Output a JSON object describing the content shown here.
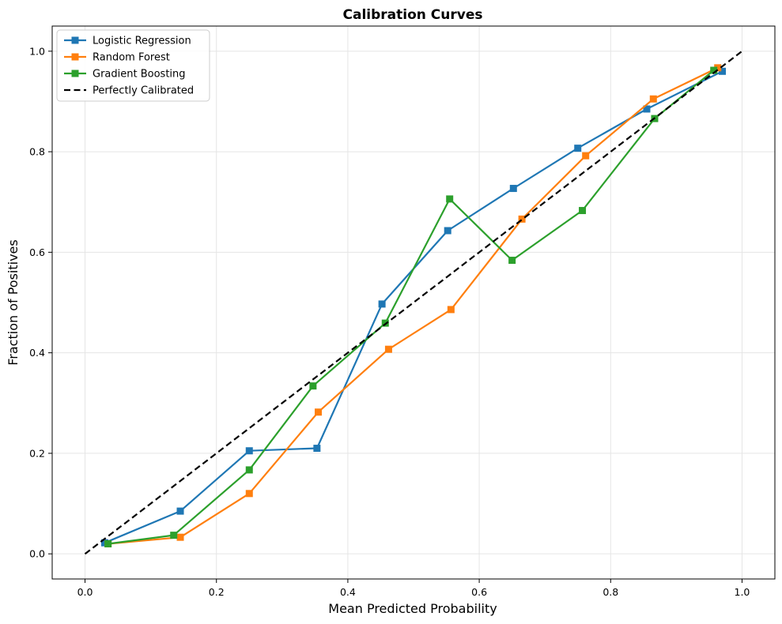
{
  "chart_data": {
    "type": "line",
    "title": "Calibration Curves",
    "xlabel": "Mean Predicted Probability",
    "ylabel": "Fraction of Positives",
    "xlim": [
      -0.05,
      1.05
    ],
    "ylim": [
      -0.05,
      1.05
    ],
    "xticks": [
      "0.0",
      "0.2",
      "0.4",
      "0.6",
      "0.8",
      "1.0"
    ],
    "yticks": [
      "0.0",
      "0.2",
      "0.4",
      "0.6",
      "0.8",
      "1.0"
    ],
    "grid": true,
    "legend_position": "top-left",
    "series": [
      {
        "name": "Logistic Regression",
        "color": "#1f77b4",
        "marker": "square",
        "x": [
          0.03,
          0.145,
          0.25,
          0.353,
          0.452,
          0.552,
          0.652,
          0.75,
          0.855,
          0.97
        ],
        "y": [
          0.022,
          0.085,
          0.205,
          0.21,
          0.497,
          0.643,
          0.727,
          0.807,
          0.885,
          0.96
        ]
      },
      {
        "name": "Random Forest",
        "color": "#ff7f0e",
        "marker": "square",
        "x": [
          0.035,
          0.145,
          0.25,
          0.355,
          0.462,
          0.557,
          0.665,
          0.762,
          0.865,
          0.963
        ],
        "y": [
          0.02,
          0.033,
          0.12,
          0.282,
          0.407,
          0.486,
          0.666,
          0.792,
          0.905,
          0.967
        ]
      },
      {
        "name": "Gradient Boosting",
        "color": "#2ca02c",
        "marker": "square",
        "x": [
          0.035,
          0.135,
          0.25,
          0.347,
          0.457,
          0.555,
          0.65,
          0.757,
          0.867,
          0.957
        ],
        "y": [
          0.02,
          0.037,
          0.167,
          0.334,
          0.459,
          0.706,
          0.584,
          0.683,
          0.866,
          0.962
        ]
      },
      {
        "name": "Perfectly Calibrated",
        "color": "#000000",
        "marker": "none",
        "dashed": true,
        "x": [
          0.0,
          1.0
        ],
        "y": [
          0.0,
          1.0
        ]
      }
    ]
  }
}
